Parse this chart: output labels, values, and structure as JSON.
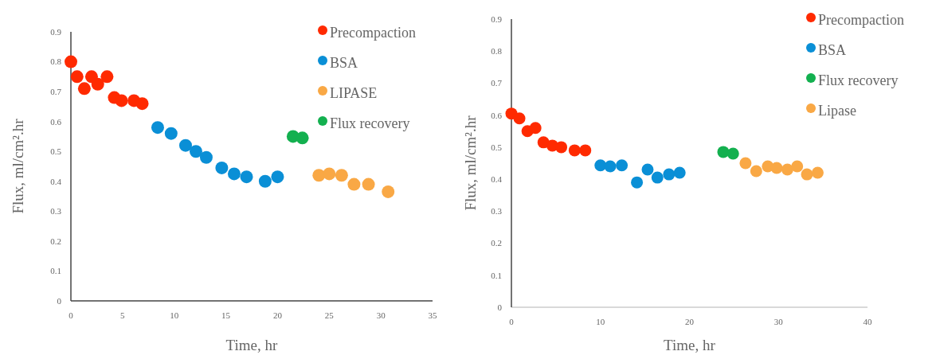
{
  "chart_data": [
    {
      "type": "scatter",
      "xlabel": "Time, hr",
      "ylabel": "Flux, ml/cm².hr",
      "xlim": [
        0,
        35
      ],
      "xticks": [
        0,
        5,
        10,
        15,
        20,
        25,
        30,
        35
      ],
      "ylim": [
        0,
        0.9
      ],
      "yticks": [
        0,
        0.1,
        0.2,
        0.3,
        0.4,
        0.5,
        0.6,
        0.7,
        0.8,
        0.9
      ],
      "legend": "top right",
      "marker": "circle",
      "grid": false,
      "series": [
        {
          "name": "Precompaction",
          "color": "#ff2a00",
          "x": [
            0,
            0.6,
            1.3,
            2.0,
            2.6,
            3.5,
            4.2,
            4.9,
            6.1,
            6.9
          ],
          "values": [
            0.8,
            0.75,
            0.71,
            0.75,
            0.725,
            0.75,
            0.68,
            0.67,
            0.67,
            0.66
          ]
        },
        {
          "name": "BSA",
          "color": "#0a8fd6",
          "x": [
            8.4,
            9.7,
            11.1,
            12.1,
            13.1,
            14.6,
            15.8,
            17.0,
            18.8,
            20.0
          ],
          "values": [
            0.58,
            0.56,
            0.52,
            0.5,
            0.48,
            0.445,
            0.425,
            0.415,
            0.4,
            0.415
          ]
        },
        {
          "name": "LIPASE",
          "color": "#f9a845",
          "x": [
            24.0,
            25.0,
            26.2,
            27.4,
            28.8,
            30.7
          ],
          "values": [
            0.42,
            0.425,
            0.42,
            0.39,
            0.39,
            0.365
          ]
        },
        {
          "name": "Flux recovery",
          "color": "#13b04f",
          "x": [
            21.5,
            22.4
          ],
          "values": [
            0.55,
            0.545
          ]
        }
      ]
    },
    {
      "type": "scatter",
      "xlabel": "Time, hr",
      "ylabel": "Flux, ml/cm².hr",
      "xlim": [
        0,
        40
      ],
      "xticks": [
        0,
        10,
        20,
        30,
        40
      ],
      "ylim": [
        0,
        0.9
      ],
      "yticks": [
        0,
        0.1,
        0.2,
        0.3,
        0.4,
        0.5,
        0.6,
        0.7,
        0.8,
        0.9
      ],
      "legend": "top right",
      "marker": "circle",
      "grid": false,
      "series": [
        {
          "name": "Precompaction",
          "color": "#ff2a00",
          "x": [
            0,
            0.9,
            1.8,
            2.7,
            3.6,
            4.6,
            5.6,
            7.1,
            8.3
          ],
          "values": [
            0.605,
            0.59,
            0.55,
            0.56,
            0.515,
            0.505,
            0.5,
            0.49,
            0.49
          ]
        },
        {
          "name": "BSA",
          "color": "#0a8fd6",
          "x": [
            10.0,
            11.1,
            12.4,
            14.1,
            15.3,
            16.4,
            17.7,
            18.9
          ],
          "values": [
            0.443,
            0.44,
            0.443,
            0.39,
            0.43,
            0.405,
            0.415,
            0.42
          ]
        },
        {
          "name": "Flux recovery",
          "color": "#13b04f",
          "x": [
            23.8,
            24.9
          ],
          "values": [
            0.485,
            0.48
          ]
        },
        {
          "name": "Lipase",
          "color": "#f9a845",
          "x": [
            26.3,
            27.5,
            28.8,
            29.8,
            31.0,
            32.1,
            33.2,
            34.4
          ],
          "values": [
            0.45,
            0.425,
            0.44,
            0.435,
            0.43,
            0.44,
            0.415,
            0.42
          ]
        }
      ]
    }
  ]
}
